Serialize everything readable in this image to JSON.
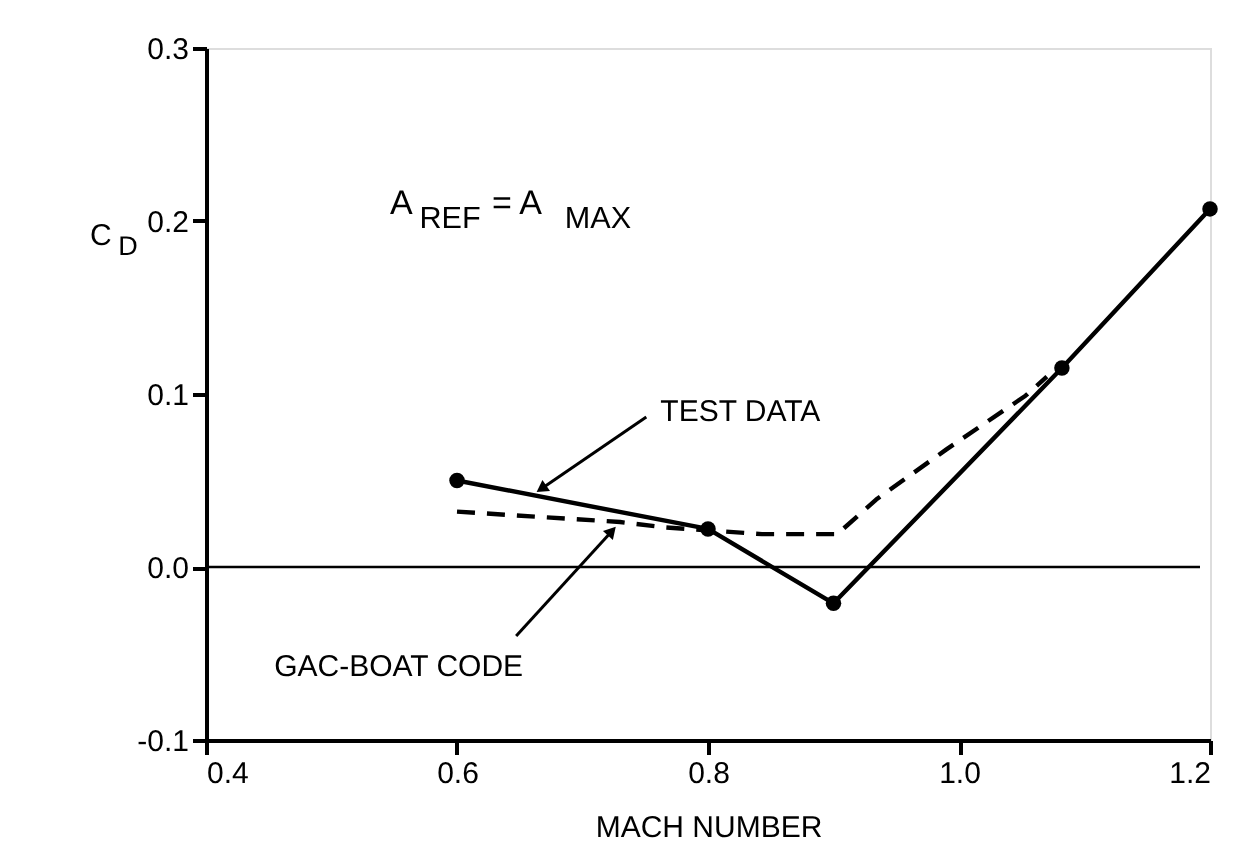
{
  "chart_data": {
    "type": "line",
    "xlabel": "MACH NUMBER",
    "ylabel": "C$_{D}$",
    "annotations": [
      "A$_{REF}$ = A$_{MAX}$"
    ],
    "xlim": [
      0.4,
      1.2
    ],
    "xticks": [
      0.4,
      0.6,
      0.8,
      {
        "value": 1,
        "label": "1.0"
      },
      1.2
    ],
    "ylim": [
      -0.1,
      0.3
    ],
    "yticks": [
      {
        "value": -0.1,
        "label": "-0.1"
      },
      {
        "value": 0,
        "label": "0.0"
      },
      0.1,
      0.2,
      0.3
    ],
    "grid": false,
    "ref_lines": [
      {
        "axis": "y",
        "value": 0,
        "label": null,
        "color": "#000000"
      }
    ],
    "series": [
      {
        "name": "TEST DATA",
        "color": "#000000",
        "marker": "circle",
        "line_style": "solid",
        "x": [
          0.6,
          0.8,
          0.9,
          1.082,
          1.2
        ],
        "values": [
          0.05,
          0.022,
          -0.021,
          0.115,
          0.207
        ]
      },
      {
        "name": "GAC-BOAT CODE",
        "color": "#000000",
        "marker": "none",
        "line_style": "dashed",
        "x": [
          0.6,
          0.73,
          0.764,
          0.843,
          0.903,
          0.934,
          0.99,
          1.053,
          1.07
        ],
        "values": [
          0.032,
          0.026,
          0.023,
          0.019,
          0.019,
          0.039,
          0.068,
          0.099,
          0.11
        ]
      }
    ]
  }
}
